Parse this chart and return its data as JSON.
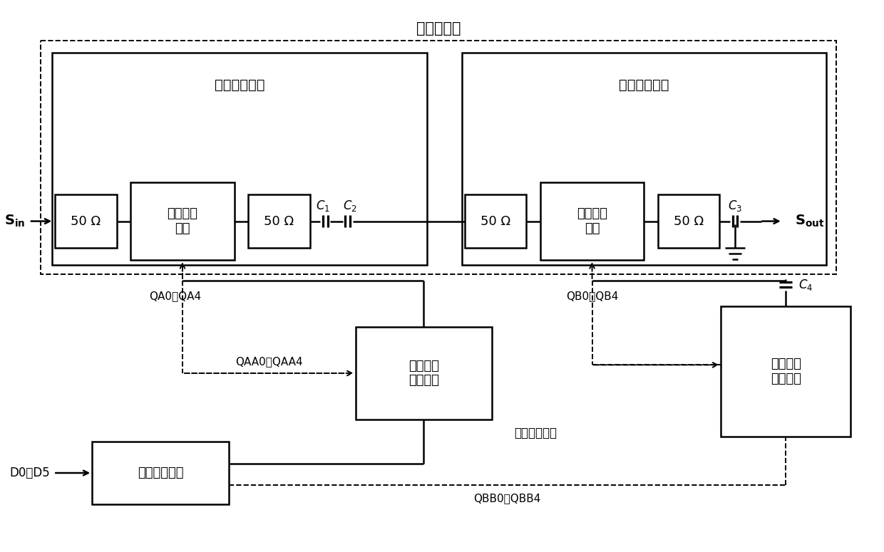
{
  "fig_width": 12.4,
  "fig_height": 7.75,
  "bg_color": "#ffffff",
  "line_color": "#000000",
  "labels": {
    "main_attenuator": "主衰减电路",
    "first_main": "第一主衰减器",
    "second_main": "第二主衰减器",
    "r50": "50 Ω",
    "dcr": "数控电阻\n网络",
    "qa": "QA0～QA4",
    "qb": "QB0～QB4",
    "qaa": "QAA0～QAA4",
    "qbb": "QBB0～QBB4",
    "d05": "D0～D5",
    "first_fine": "第一衰减\n微调电路",
    "second_fine": "第二衰减\n微调电路",
    "fine_label": "衰减微调电路",
    "decoder": "译码控制电路"
  }
}
